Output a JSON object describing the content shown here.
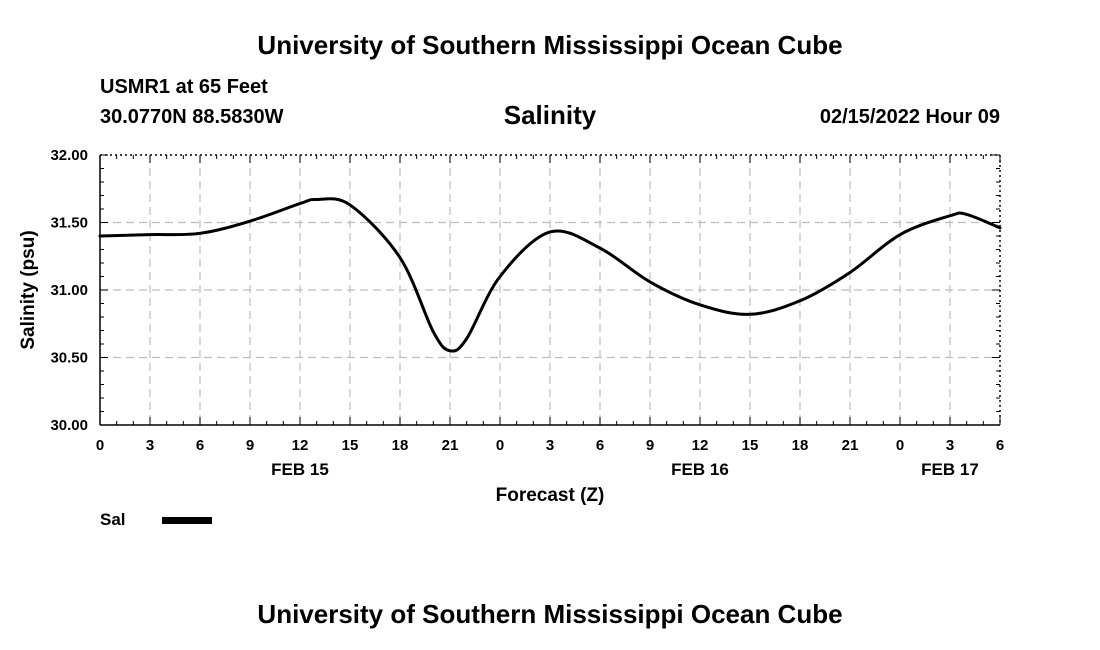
{
  "header": {
    "title": "University of Southern Mississippi Ocean Cube",
    "station": "USMR1 at 65 Feet",
    "coords": "30.0770N  88.5830W",
    "variable": "Salinity",
    "run_time": "02/15/2022 Hour 09"
  },
  "footer": {
    "title": "University of Southern Mississippi Ocean Cube"
  },
  "legend": {
    "label": "Sal"
  },
  "chart_data": {
    "type": "line",
    "title": "Salinity",
    "xlabel": "Forecast (Z)",
    "ylabel": "Salinity (psu)",
    "ylim": [
      30.0,
      32.0
    ],
    "xlim": [
      0,
      54
    ],
    "grid": true,
    "legend_position": "bottom-left",
    "x_tick_labels": [
      "0",
      "3",
      "6",
      "9",
      "12",
      "15",
      "18",
      "21",
      "0",
      "3",
      "6",
      "9",
      "12",
      "15",
      "18",
      "21",
      "0",
      "3",
      "6"
    ],
    "date_labels": [
      {
        "label": "FEB 15",
        "hour": 12
      },
      {
        "label": "FEB 16",
        "hour": 36
      },
      {
        "label": "FEB 17",
        "hour": 51
      }
    ],
    "y_tick_labels": [
      "30.00",
      "30.50",
      "31.00",
      "31.50",
      "32.00"
    ],
    "y_ticks": [
      30.0,
      30.5,
      31.0,
      31.5,
      32.0
    ],
    "series": [
      {
        "name": "Sal",
        "color": "#000000",
        "x": [
          0,
          3,
          6,
          9,
          12,
          13,
          15,
          18,
          20,
          21,
          22,
          24,
          27,
          30,
          33,
          36,
          39,
          42,
          45,
          48,
          51,
          52,
          54
        ],
        "y": [
          31.4,
          31.41,
          31.42,
          31.51,
          31.64,
          31.67,
          31.63,
          31.24,
          30.69,
          30.55,
          30.64,
          31.1,
          31.43,
          31.31,
          31.06,
          30.89,
          30.82,
          30.92,
          31.13,
          31.41,
          31.55,
          31.56,
          31.46
        ]
      }
    ]
  }
}
